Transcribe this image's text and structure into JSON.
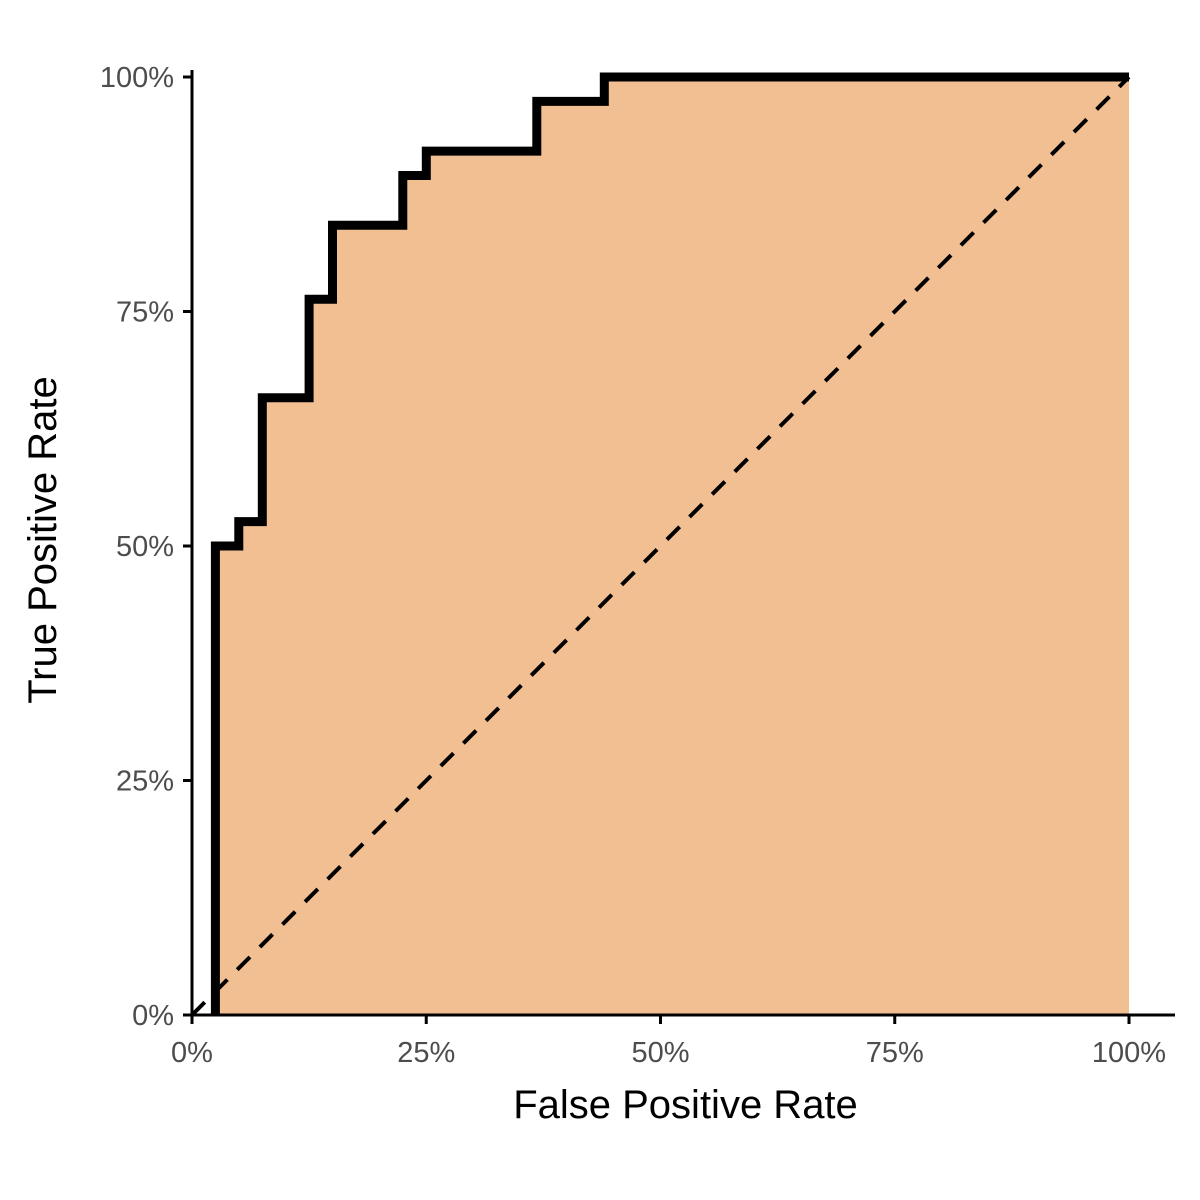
{
  "chart_data": {
    "type": "area",
    "title": "",
    "xlabel": "False Positive Rate",
    "ylabel": "True Positive Rate",
    "xlim": [
      0,
      1
    ],
    "ylim": [
      0,
      1
    ],
    "x_ticks": [
      0,
      0.25,
      0.5,
      0.75,
      1
    ],
    "x_tick_labels": [
      "0%",
      "25%",
      "50%",
      "75%",
      "100%"
    ],
    "y_ticks": [
      0,
      0.25,
      0.5,
      0.75,
      1
    ],
    "y_tick_labels": [
      "0%",
      "25%",
      "50%",
      "75%",
      "100%"
    ],
    "grid": false,
    "series": [
      {
        "kind": "roc-step-curve",
        "fill_color": "#f2bf93",
        "line_color": "#000000",
        "x": [
          0.025,
          0.025,
          0.05,
          0.05,
          0.075,
          0.075,
          0.125,
          0.125,
          0.15,
          0.15,
          0.225,
          0.225,
          0.25,
          0.25,
          0.368,
          0.368,
          0.44,
          0.44,
          1.0
        ],
        "y": [
          0.0,
          0.5,
          0.5,
          0.526,
          0.526,
          0.658,
          0.658,
          0.763,
          0.763,
          0.842,
          0.842,
          0.895,
          0.895,
          0.921,
          0.921,
          0.974,
          0.974,
          1.0,
          1.0
        ]
      },
      {
        "kind": "chance-diagonal",
        "line_color": "#000000",
        "line_style": "dashed",
        "x": [
          0,
          1
        ],
        "y": [
          0,
          1
        ]
      }
    ]
  }
}
